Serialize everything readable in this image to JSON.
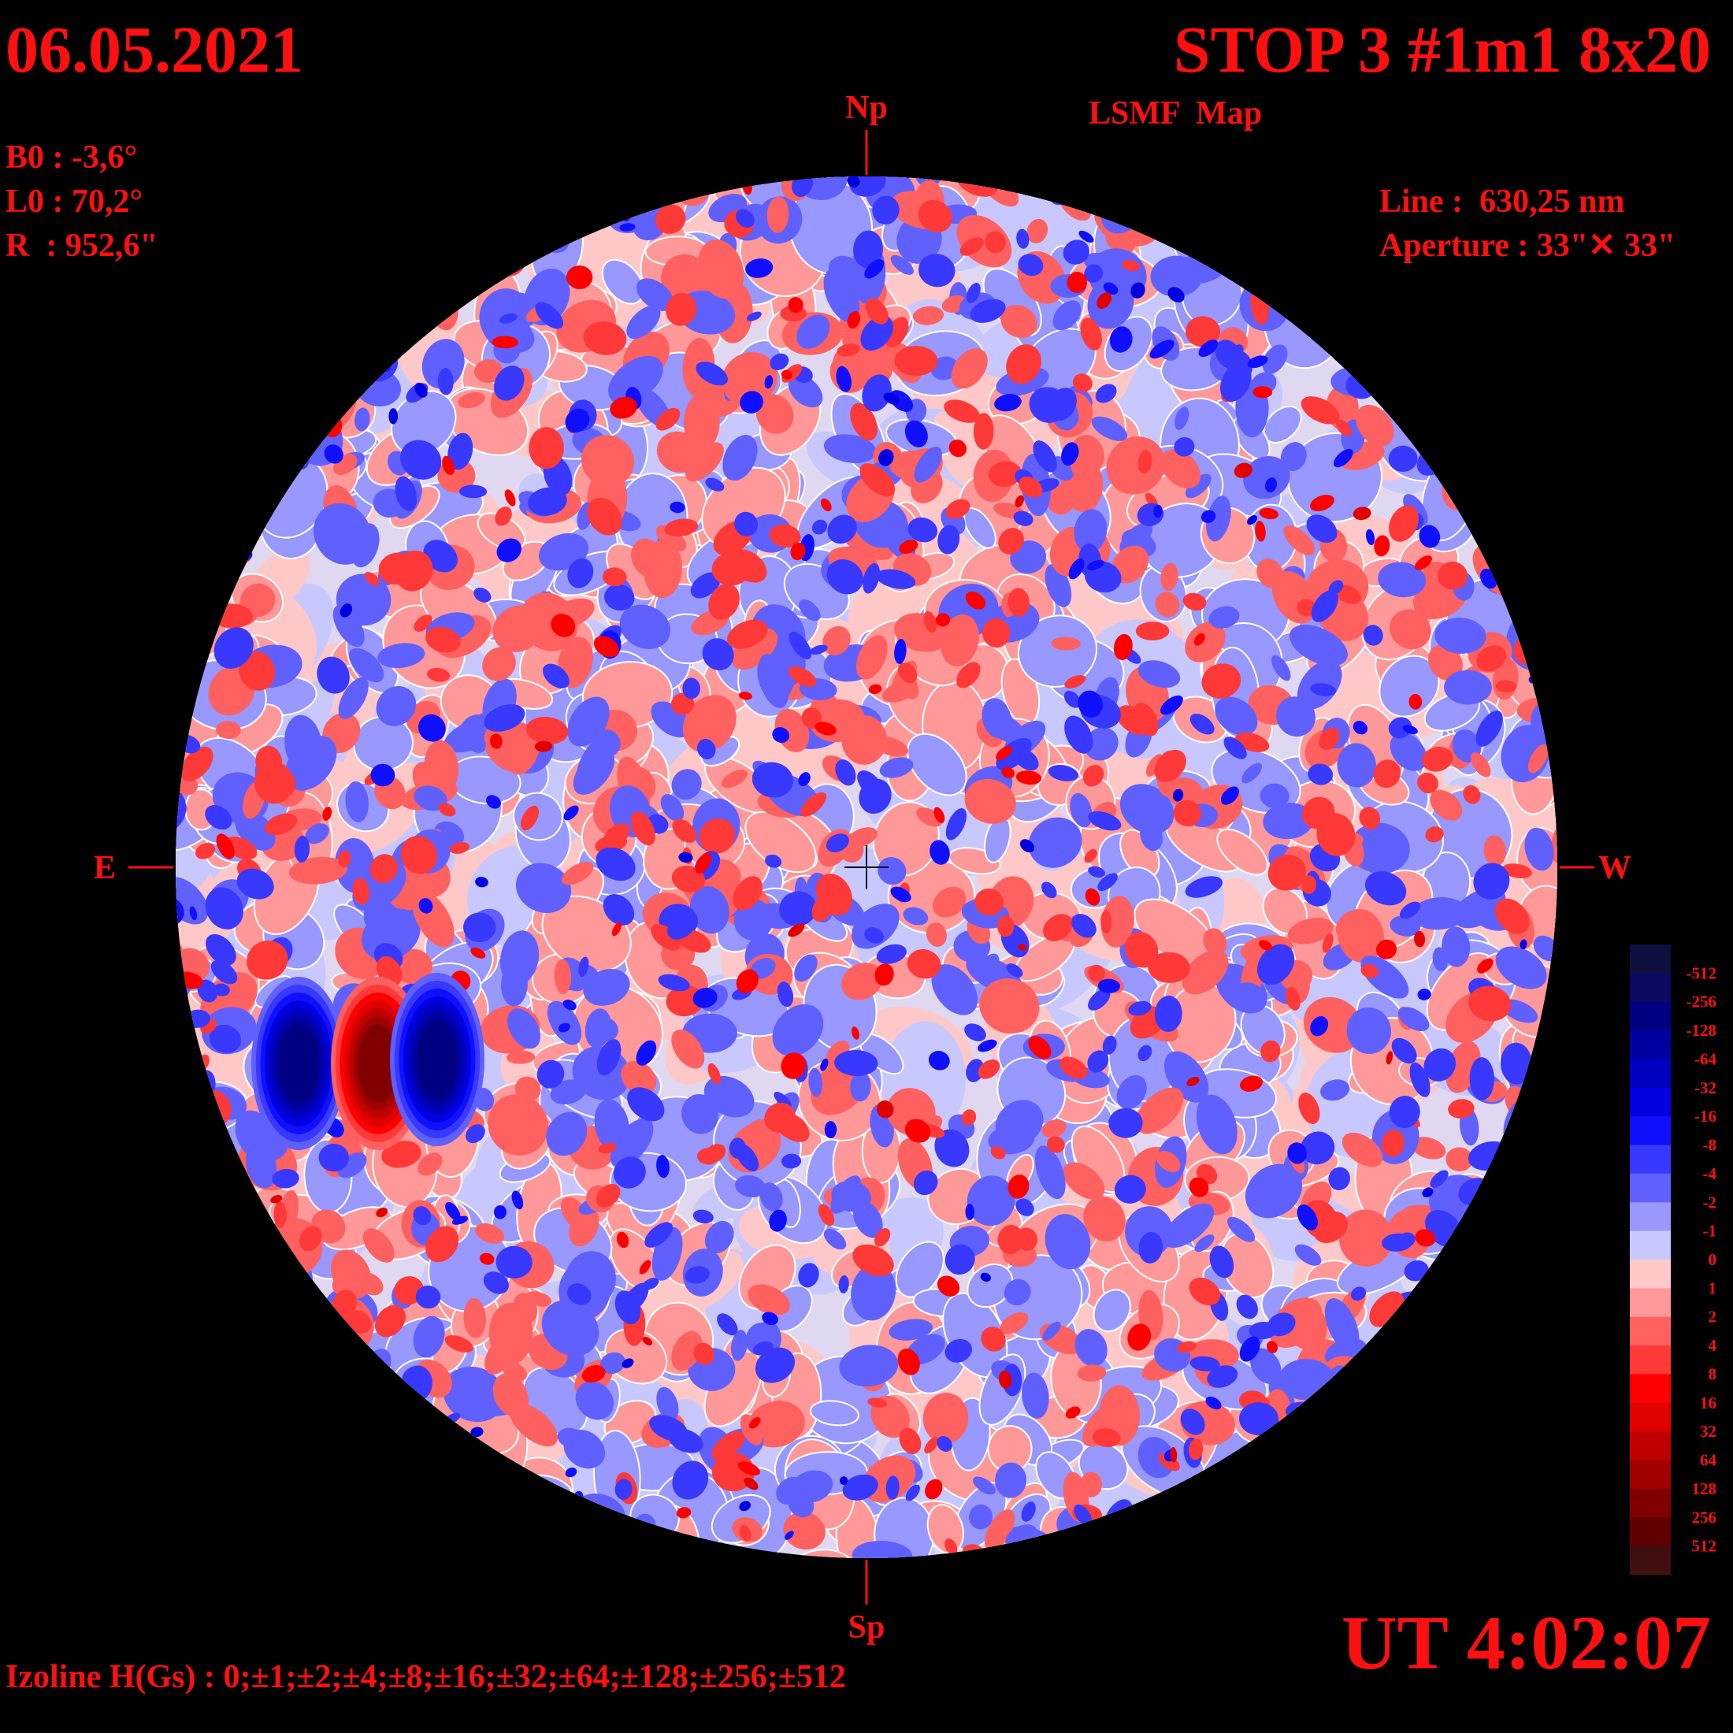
{
  "header": {
    "date": "06.05.2021",
    "title": "STOP 3 #1m1 8x20",
    "subtitle": "LSMF  Map",
    "ut": "UT 4:02:07"
  },
  "params": {
    "b0": "B0 : -3,6°",
    "l0": "L0 : 70,2°",
    "r": "R  : 952,6\"",
    "line": "Line :  630,25 nm",
    "aperture": "Aperture : 33\"✕ 33\""
  },
  "directions": {
    "north": "Np",
    "south": "Sp",
    "east": "E",
    "west": "W"
  },
  "colorbar": {
    "levels": [
      -512,
      -256,
      -128,
      -64,
      -32,
      -16,
      -8,
      -4,
      -2,
      -1,
      0,
      1,
      2,
      4,
      8,
      16,
      32,
      64,
      128,
      256,
      512
    ],
    "colors": [
      "#101040",
      "#0a0a60",
      "#000080",
      "#0000a0",
      "#0000c0",
      "#0000e0",
      "#1010ff",
      "#3838ff",
      "#6060ff",
      "#9898ff",
      "#c8c8ff",
      "#ffc8c8",
      "#ff9898",
      "#ff6060",
      "#ff3838",
      "#ff0000",
      "#e00000",
      "#c00000",
      "#a00000",
      "#800000",
      "#600000",
      "#401010"
    ]
  },
  "footer": {
    "izoline": "Izoline H(Gs) : 0;±1;±2;±4;±8;±16;±32;±64;±128;±256;±512"
  }
}
